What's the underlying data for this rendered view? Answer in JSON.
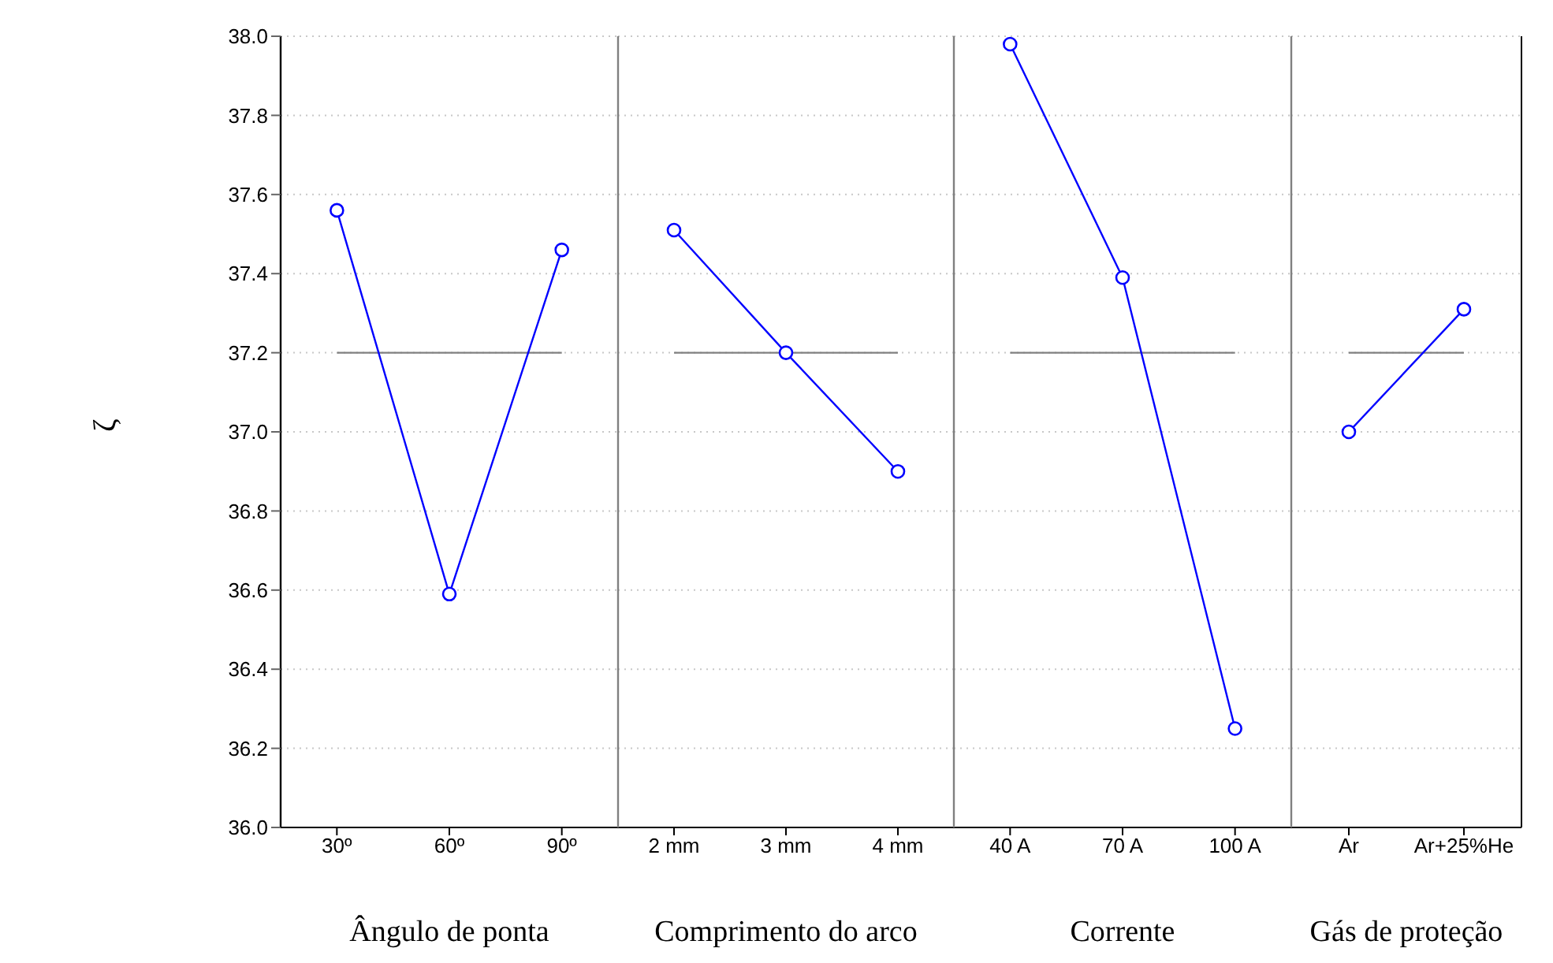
{
  "chart_data": [
    {
      "type": "line",
      "categories": [
        "30º",
        "60º",
        "90º"
      ],
      "values": [
        37.56,
        36.59,
        37.46
      ],
      "color": "#0000ff",
      "marker": "circle",
      "ylim": [
        36.0,
        38.0
      ],
      "yticks": [
        {
          "value": 36,
          "label": "36.0"
        },
        {
          "value": 36.2,
          "label": "36.2"
        },
        {
          "value": 36.4,
          "label": "36.4"
        },
        {
          "value": 36.6,
          "label": "36.6"
        },
        {
          "value": 36.8,
          "label": "36.8"
        },
        {
          "value": 37,
          "label": "37.0"
        },
        {
          "value": 37.2,
          "label": "37.2"
        },
        {
          "value": 37.4,
          "label": "37.4"
        },
        {
          "value": 37.6,
          "label": "37.6"
        },
        {
          "value": 37.8,
          "label": "37.8"
        },
        {
          "value": 38,
          "label": "38.0"
        }
      ],
      "grid": "y",
      "ylabel": "ζ",
      "xlabel": "Ângulo de ponta",
      "ref_lines": [
        {
          "axis": "y",
          "value": 37.2,
          "color": "#808080"
        }
      ]
    },
    {
      "type": "line",
      "categories": [
        "2 mm",
        "3 mm",
        "4 mm"
      ],
      "values": [
        37.51,
        37.2,
        36.9
      ],
      "color": "#0000ff",
      "marker": "circle",
      "ylim": [
        36.0,
        38.0
      ],
      "yticks": [
        36,
        36.2,
        36.4,
        36.6,
        36.8,
        37,
        37.2,
        37.4,
        37.6,
        37.8,
        38
      ],
      "grid": "y",
      "tick_labels": "x",
      "xlabel": "Comprimento do arco",
      "ref_lines": [
        {
          "axis": "y",
          "value": 37.2,
          "color": "#808080"
        }
      ]
    },
    {
      "type": "line",
      "categories": [
        "40 A",
        "70 A",
        "100 A"
      ],
      "values": [
        37.98,
        37.39,
        36.25
      ],
      "color": "#0000ff",
      "marker": "circle",
      "ylim": [
        36.0,
        38.0
      ],
      "yticks": [
        36,
        36.2,
        36.4,
        36.6,
        36.8,
        37,
        37.2,
        37.4,
        37.6,
        37.8,
        38
      ],
      "grid": "y",
      "tick_labels": "x",
      "xlabel": "Corrente",
      "ref_lines": [
        {
          "axis": "y",
          "value": 37.2,
          "color": "#808080"
        }
      ]
    },
    {
      "type": "line",
      "categories": [
        "Ar",
        "Ar+25%He"
      ],
      "values": [
        37.0,
        37.31
      ],
      "color": "#0000ff",
      "marker": "circle",
      "ylim": [
        36.0,
        38.0
      ],
      "yticks": [
        36,
        36.2,
        36.4,
        36.6,
        36.8,
        37,
        37.2,
        37.4,
        37.6,
        37.8,
        38
      ],
      "grid": "y",
      "tick_labels": "x",
      "xlabel": "Gás de proteção",
      "ref_lines": [
        {
          "axis": "y",
          "value": 37.2,
          "color": "#808080"
        }
      ]
    }
  ]
}
